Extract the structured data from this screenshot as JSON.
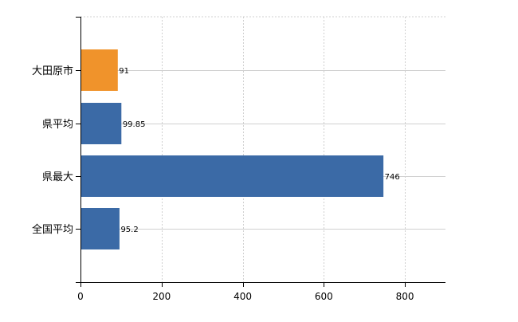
{
  "chart_data": {
    "type": "bar",
    "orientation": "horizontal",
    "categories": [
      "大田原市",
      "県平均",
      "県最大",
      "全国平均"
    ],
    "values": [
      91,
      99.85,
      746,
      95.2
    ],
    "value_labels": [
      "91",
      "99.85",
      "746",
      "95.2"
    ],
    "bar_colors": [
      "#f0932b",
      "#3b6aa6",
      "#3b6aa6",
      "#3b6aa6"
    ],
    "xlim": [
      0,
      900
    ],
    "x_ticks": [
      0,
      200,
      400,
      600,
      800
    ],
    "x_tick_labels": [
      "0",
      "200",
      "400",
      "600",
      "800"
    ],
    "grid": true,
    "legend": "none",
    "title": "",
    "xlabel": "",
    "ylabel": ""
  },
  "colors": {
    "highlight": "#f0932b",
    "primary": "#3b6aa6",
    "grid": "#d0d0d0"
  }
}
